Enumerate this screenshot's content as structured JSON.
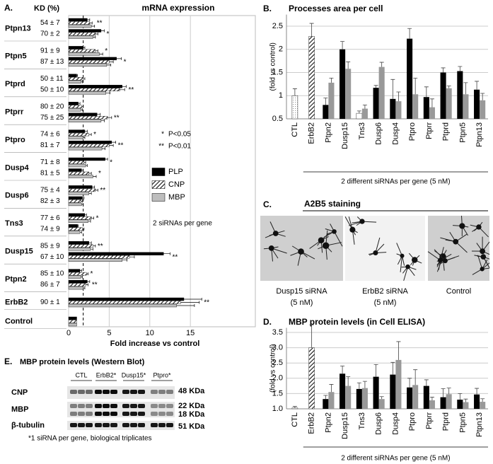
{
  "chart_data": [
    {
      "type": "hbar",
      "panel": "A.",
      "title": "mRNA expression",
      "kd_header": "KD (%)",
      "xlabel": "Fold increase vs control",
      "xlim": [
        0,
        23
      ],
      "xticks": [
        0,
        5,
        10,
        15
      ],
      "grid": true,
      "threshold": 1.8,
      "note": "2 siRNAs per gene",
      "significance_legend": [
        {
          "symbol": "*",
          "label": "P<0.05"
        },
        {
          "symbol": "**",
          "label": "P<0.01"
        }
      ],
      "series": [
        {
          "name": "PLP",
          "color": "#000000"
        },
        {
          "name": "CNP",
          "color": "#000000",
          "pattern": "hatch"
        },
        {
          "name": "MBP",
          "color": "#bdbdbd"
        }
      ],
      "groups": [
        {
          "gene": "Ptpn13",
          "rows": [
            {
              "kd": "54 ± 7",
              "values": [
                2.3,
                2.6,
                2.8
              ],
              "errors": [
                0.3,
                0.3,
                0.4
              ],
              "sig": "**"
            },
            {
              "kd": "70 ± 2",
              "values": [
                4.0,
                3.3,
                3.0
              ],
              "errors": [
                0.4,
                0.3,
                0.3
              ],
              "sig": "*"
            }
          ]
        },
        {
          "gene": "Ptpn5",
          "rows": [
            {
              "kd": "91 ± 9",
              "values": [
                1.8,
                3.3,
                3.8
              ],
              "errors": [
                0.2,
                0.3,
                0.4
              ],
              "sig": "*"
            },
            {
              "kd": "87 ± 13",
              "values": [
                5.9,
                5.0,
                4.7
              ],
              "errors": [
                0.6,
                0.5,
                0.5
              ],
              "sig": "*"
            }
          ]
        },
        {
          "gene": "Ptprd",
          "rows": [
            {
              "kd": "50 ± 11",
              "values": [
                1.0,
                1.8,
                1.5
              ],
              "errors": [
                0.1,
                0.2,
                0.2
              ]
            },
            {
              "kd": "50 ± 10",
              "values": [
                6.6,
                6.3,
                4.6
              ],
              "errors": [
                0.5,
                0.6,
                0.5
              ],
              "sig": "**"
            }
          ]
        },
        {
          "gene": "Ptprr",
          "rows": [
            {
              "kd": "80 ± 20",
              "values": [
                1.2,
                1.6,
                1.5
              ],
              "errors": [
                0.2,
                0.2,
                0.2
              ]
            },
            {
              "kd": "75 ± 25",
              "values": [
                3.5,
                4.8,
                4.0
              ],
              "errors": [
                0.4,
                0.5,
                0.4
              ],
              "sig": "**"
            }
          ]
        },
        {
          "gene": "Ptpro",
          "rows": [
            {
              "kd": "74 ± 6",
              "values": [
                2.0,
                2.5,
                1.8
              ],
              "errors": [
                0.3,
                0.3,
                0.2
              ],
              "sig": "*"
            },
            {
              "kd": "81 ± 7",
              "values": [
                5.3,
                5.0,
                4.1
              ],
              "errors": [
                0.5,
                0.5,
                0.4
              ],
              "sig": "**"
            }
          ]
        },
        {
          "gene": "Dusp4",
          "rows": [
            {
              "kd": "71 ± 8",
              "values": [
                4.5,
                1.9,
                2.1
              ],
              "errors": [
                0.3,
                0.2,
                0.2
              ],
              "sig": "*"
            },
            {
              "kd": "81 ± 5",
              "values": [
                1.6,
                2.5,
                3.0
              ],
              "errors": [
                0.2,
                0.3,
                0.4
              ],
              "sig": "*"
            }
          ]
        },
        {
          "gene": "Dusp6",
          "rows": [
            {
              "kd": "75 ± 4",
              "values": [
                2.9,
                3.3,
                2.5
              ],
              "errors": [
                0.3,
                0.3,
                0.3
              ],
              "sig": "**"
            },
            {
              "kd": "82 ± 3",
              "values": [
                1.7,
                1.5,
                1.6
              ],
              "errors": [
                0.2,
                0.2,
                0.2
              ]
            }
          ]
        },
        {
          "gene": "Tns3",
          "rows": [
            {
              "kd": "77 ± 6",
              "values": [
                2.0,
                2.8,
                2.4
              ],
              "errors": [
                0.2,
                0.3,
                0.3
              ],
              "sig": "*"
            },
            {
              "kd": "74 ± 9",
              "values": [
                1.1,
                1.7,
                1.4
              ],
              "errors": [
                0.1,
                0.2,
                0.2
              ]
            }
          ]
        },
        {
          "gene": "Dusp15",
          "rows": [
            {
              "kd": "85 ± 9",
              "values": [
                2.5,
                3.0,
                2.7
              ],
              "errors": [
                0.3,
                0.3,
                0.3
              ],
              "sig": "**"
            },
            {
              "kd": "67 ± 10",
              "values": [
                11.7,
                7.5,
                6.6
              ],
              "errors": [
                0.8,
                0.6,
                0.6
              ],
              "sig": "**"
            }
          ]
        },
        {
          "gene": "Ptpn2",
          "rows": [
            {
              "kd": "85 ± 10",
              "values": [
                1.4,
                2.2,
                1.5
              ],
              "errors": [
                0.2,
                0.2,
                0.2
              ],
              "sig": "*"
            },
            {
              "kd": "86 ± 7",
              "values": [
                2.3,
                2.1,
                1.8
              ],
              "errors": [
                0.3,
                0.3,
                0.2
              ],
              "sig": "**"
            }
          ]
        },
        {
          "gene": "ErbB2",
          "rows": [
            {
              "kd": "90 ± 1",
              "values": [
                14.2,
                13.8,
                13.3
              ],
              "errors": [
                2.2,
                2.3,
                2.2
              ],
              "sig": "**"
            }
          ]
        },
        {
          "gene": "Control",
          "rows": [
            {
              "values": [
                1,
                1,
                1
              ]
            }
          ]
        }
      ]
    },
    {
      "type": "bar",
      "panel": "B.",
      "title": "Processes area per cell",
      "ylabel": "(fold vs control)",
      "xlabel": "2 different siRNAs per gene (5 nM)",
      "categories": [
        "CTL",
        "ErbB2",
        "Ptpn2",
        "Dusp15",
        "Tns3",
        "Dusp6",
        "Dusp4",
        "Ptpro",
        "Ptprr",
        "Ptprd",
        "Ptpn5",
        "Ptpn13"
      ],
      "ylim": [
        0.5,
        2.75
      ],
      "yticks": [
        0.5,
        1,
        1.5,
        2,
        2.5
      ],
      "grid": true,
      "series": [
        {
          "color": "#000000",
          "values": [
            1.0,
            2.28,
            0.8,
            2.0,
            0.62,
            1.17,
            0.93,
            2.23,
            0.97,
            1.5,
            1.53,
            1.13
          ],
          "errors": [
            0.15,
            0.28,
            0.15,
            0.17,
            0.05,
            0.05,
            0.42,
            0.22,
            0.22,
            0.1,
            0.1,
            0.18
          ],
          "patterns": {
            "0": "dots",
            "1": "hatch",
            "4": "white"
          }
        },
        {
          "color": "#999999",
          "values": [
            null,
            null,
            1.28,
            1.58,
            0.72,
            1.62,
            0.88,
            1.03,
            0.75,
            1.16,
            1.03,
            0.9
          ],
          "errors": [
            null,
            null,
            0.1,
            0.15,
            0.08,
            0.1,
            0.2,
            0.35,
            0.18,
            0.05,
            0.25,
            0.15
          ]
        }
      ]
    },
    {
      "type": "bar",
      "panel": "D.",
      "title": "MBP protein levels (in Cell ELISA)",
      "ylabel": "(fold vs control)",
      "xlabel": "2 different siRNAs per gene (5 nM)",
      "categories": [
        "CTL",
        "ErbB2",
        "Ptpn2",
        "Dusp15",
        "Tns3",
        "Dusp6",
        "Dusp4",
        "Ptpro",
        "Ptprr",
        "Ptprd",
        "Ptpn5",
        "Ptpn13"
      ],
      "ylim": [
        1,
        3.65
      ],
      "yticks": [
        {
          "value": 1,
          "label": "1.0"
        },
        1.5,
        {
          "value": 2,
          "label": "2.0"
        },
        2.5,
        {
          "value": 3,
          "label": "3.0"
        },
        3.5
      ],
      "grid": true,
      "series": [
        {
          "color": "#000000",
          "values": [
            1.03,
            3.0,
            1.32,
            2.15,
            1.65,
            2.05,
            2.12,
            1.7,
            1.75,
            1.38,
            1.3,
            1.47
          ],
          "errors": [
            0.05,
            0.75,
            0.12,
            0.25,
            0.2,
            0.4,
            0.4,
            0.3,
            0.2,
            0.28,
            0.2,
            0.2
          ],
          "patterns": {
            "0": "white",
            "1": "hatch"
          }
        },
        {
          "color": "#999999",
          "values": [
            null,
            null,
            1.55,
            1.75,
            1.68,
            1.32,
            2.6,
            1.78,
            1.28,
            1.48,
            1.22,
            1.23
          ],
          "errors": [
            null,
            null,
            0.25,
            0.3,
            0.22,
            0.08,
            0.6,
            0.5,
            0.1,
            0.2,
            0.1,
            0.1
          ]
        }
      ]
    }
  ],
  "panel_c": {
    "panel": "C.",
    "title": "A2B5 staining",
    "images": [
      {
        "caption": [
          "Dusp15 siRNA",
          "(5 nM)"
        ]
      },
      {
        "caption": [
          "ErbB2 siRNA",
          "(5 nM)"
        ]
      },
      {
        "caption": [
          "Control"
        ]
      }
    ]
  },
  "panel_e": {
    "panel": "E.",
    "title": "MBP protein levels (Western Blot)",
    "lanes": [
      "CTL",
      "ErbB2*",
      "Dusp15*",
      "Ptpro*"
    ],
    "rows": [
      {
        "label": "CNP",
        "sizes": [
          "48 KDa"
        ]
      },
      {
        "label": "MBP",
        "sizes": [
          "22 KDa",
          "18 KDa"
        ]
      },
      {
        "label": "β-tubulin",
        "sizes": [
          "51 KDa"
        ]
      }
    ],
    "footnote": "*1 siRNA per gene, biological triplicates"
  }
}
